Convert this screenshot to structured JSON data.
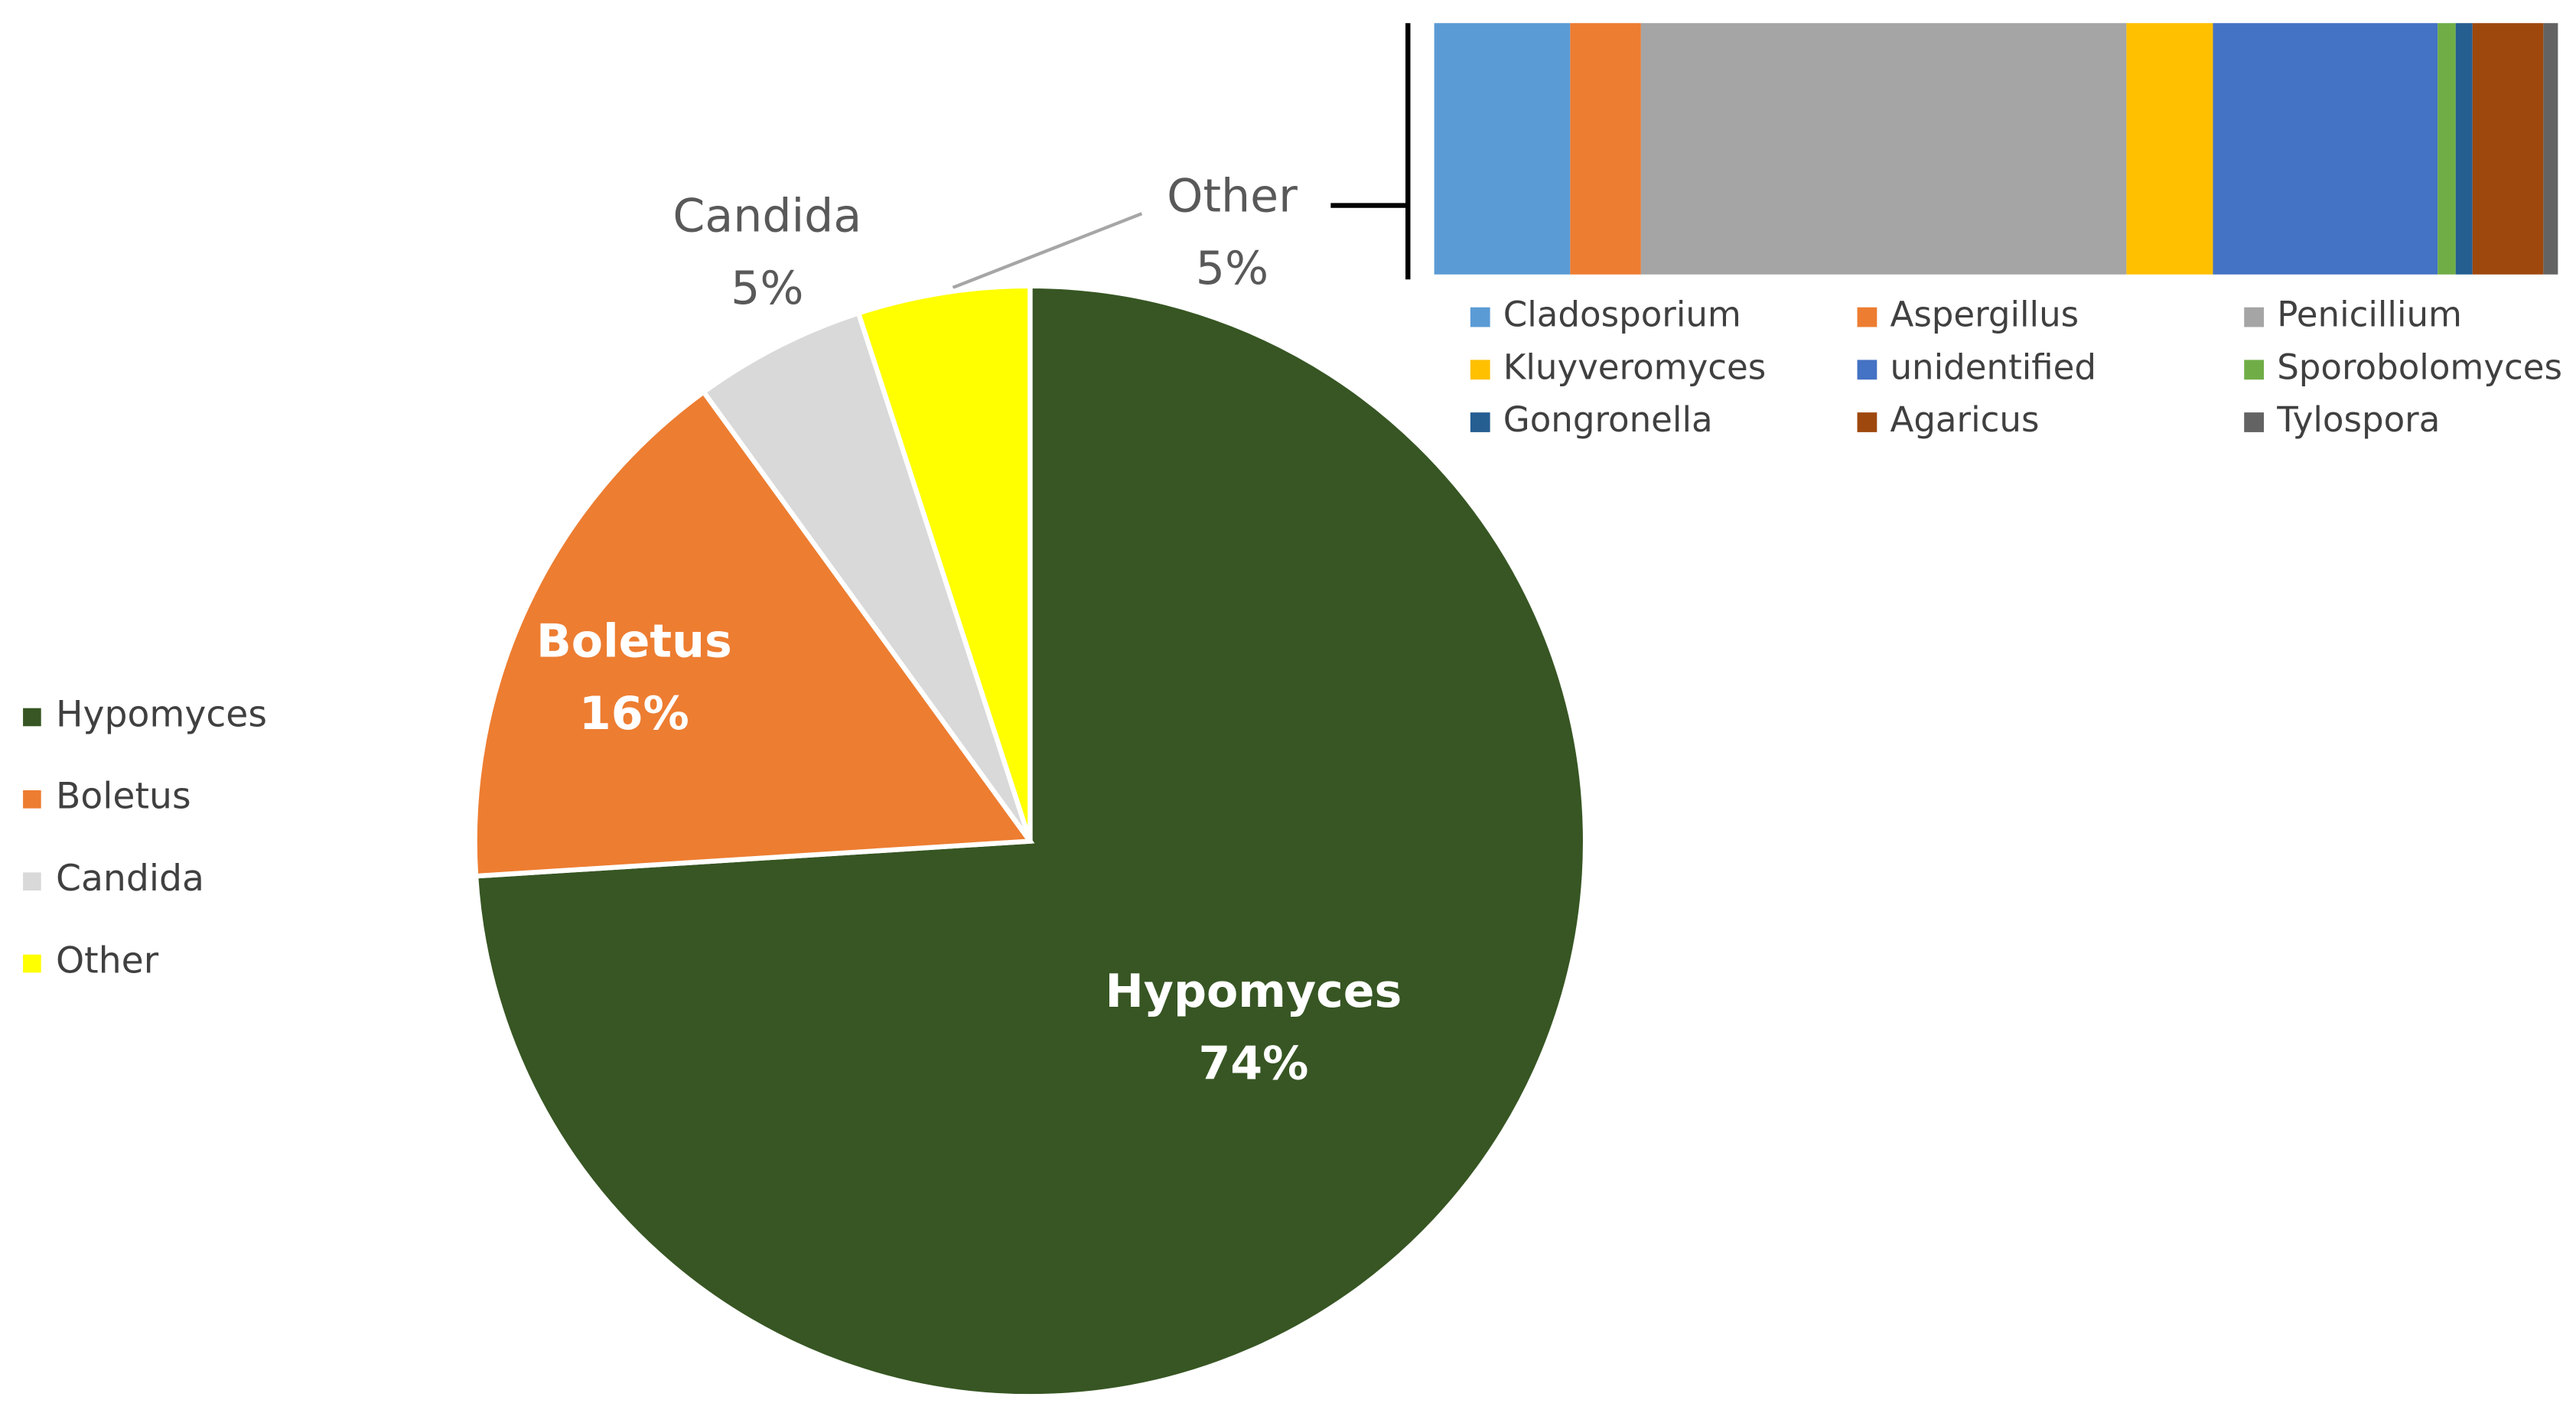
{
  "chart_data": [
    {
      "type": "pie",
      "categories": [
        "Hypomyces",
        "Boletus",
        "Candida",
        "Other"
      ],
      "values": [
        74,
        16,
        5,
        5
      ],
      "value_labels": [
        "74%",
        "16%",
        "5%",
        "5%"
      ],
      "colors": [
        "#375623",
        "#ED7D31",
        "#D9D9D9",
        "#FFFF00"
      ],
      "legend": "left"
    },
    {
      "type": "stacked-bar",
      "orientation": "horizontal",
      "series": [
        {
          "name": "Cladosporium",
          "color": "#5B9BD5",
          "values": [
            12.1
          ]
        },
        {
          "name": "Aspergillus",
          "color": "#ED7D31",
          "values": [
            6.3
          ]
        },
        {
          "name": "Penicillium",
          "color": "#A5A5A5",
          "values": [
            43.2
          ]
        },
        {
          "name": "Kluyveromyces",
          "color": "#FFC000",
          "values": [
            7.7
          ]
        },
        {
          "name": "unidentified",
          "color": "#4472C4",
          "values": [
            20.0
          ]
        },
        {
          "name": "Sporobolomyces",
          "color": "#70AD47",
          "values": [
            1.6
          ]
        },
        {
          "name": "Gongronella",
          "color": "#255E91",
          "values": [
            1.5
          ]
        },
        {
          "name": "Agaricus",
          "color": "#9E480E",
          "values": [
            6.3
          ]
        },
        {
          "name": "Tylospora",
          "color": "#636363",
          "values": [
            1.3
          ]
        }
      ],
      "legend": "bottom"
    }
  ]
}
